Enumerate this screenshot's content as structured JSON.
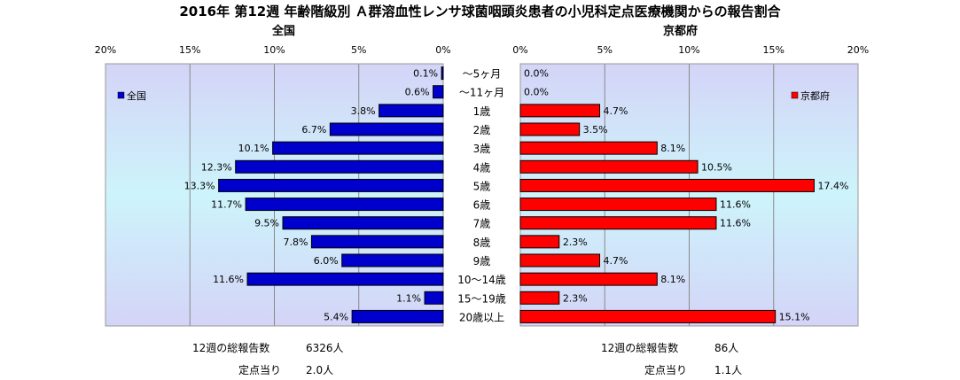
{
  "title": "2016年 第12週 年齢階級別 Ａ群溶血性レンサ球菌咽頭炎患者の小児科定点医療機関からの報告割合",
  "colors": {
    "national_bar": "#0000cc",
    "kyoto_bar": "#ff0000",
    "plot_bg_top": "#d4d4f7",
    "plot_bg_mid": "#cdf4fb"
  },
  "chart_data": {
    "type": "bar",
    "orientation": "horizontal-butterfly",
    "categories": [
      "～5ヶ月",
      "～11ヶ月",
      "1歳",
      "2歳",
      "3歳",
      "4歳",
      "5歳",
      "6歳",
      "7歳",
      "8歳",
      "9歳",
      "10～14歳",
      "15～19歳",
      "20歳以上"
    ],
    "panels": [
      {
        "title": "全国",
        "legend": "全国",
        "legend_position": "top-left",
        "direction": "left",
        "xlim": [
          0,
          20
        ],
        "ticks": [
          "0%",
          "5%",
          "10%",
          "15%",
          "20%"
        ],
        "tick_values": [
          0,
          5,
          10,
          15,
          20
        ],
        "values": [
          0.1,
          0.6,
          3.8,
          6.7,
          10.1,
          12.3,
          13.3,
          11.7,
          9.5,
          7.8,
          6.0,
          11.6,
          1.1,
          5.4
        ],
        "labels": [
          "0.1%",
          "0.6%",
          "3.8%",
          "6.7%",
          "10.1%",
          "12.3%",
          "13.3%",
          "11.7%",
          "9.5%",
          "7.8%",
          "6.0%",
          "11.6%",
          "1.1%",
          "5.4%"
        ],
        "color": "#0000cc"
      },
      {
        "title": "京都府",
        "legend": "京都府",
        "legend_position": "top-right",
        "direction": "right",
        "xlim": [
          0,
          20
        ],
        "ticks": [
          "0%",
          "5%",
          "10%",
          "15%",
          "20%"
        ],
        "tick_values": [
          0,
          5,
          10,
          15,
          20
        ],
        "values": [
          0.0,
          0.0,
          4.7,
          3.5,
          8.1,
          10.5,
          17.4,
          11.6,
          11.6,
          2.3,
          4.7,
          8.1,
          2.3,
          15.1
        ],
        "labels": [
          "0.0%",
          "0.0%",
          "4.7%",
          "3.5%",
          "8.1%",
          "10.5%",
          "17.4%",
          "11.6%",
          "11.6%",
          "2.3%",
          "4.7%",
          "8.1%",
          "2.3%",
          "15.1%"
        ],
        "color": "#ff0000"
      }
    ],
    "grid": true
  },
  "stats": {
    "national_total_label": "12週の総報告数",
    "national_total_value": "6326人",
    "national_per_label": "定点当り",
    "national_per_value": "2.0人",
    "kyoto_total_label": "12週の総報告数",
    "kyoto_total_value": "86人",
    "kyoto_per_label": "定点当り",
    "kyoto_per_value": "1.1人"
  }
}
